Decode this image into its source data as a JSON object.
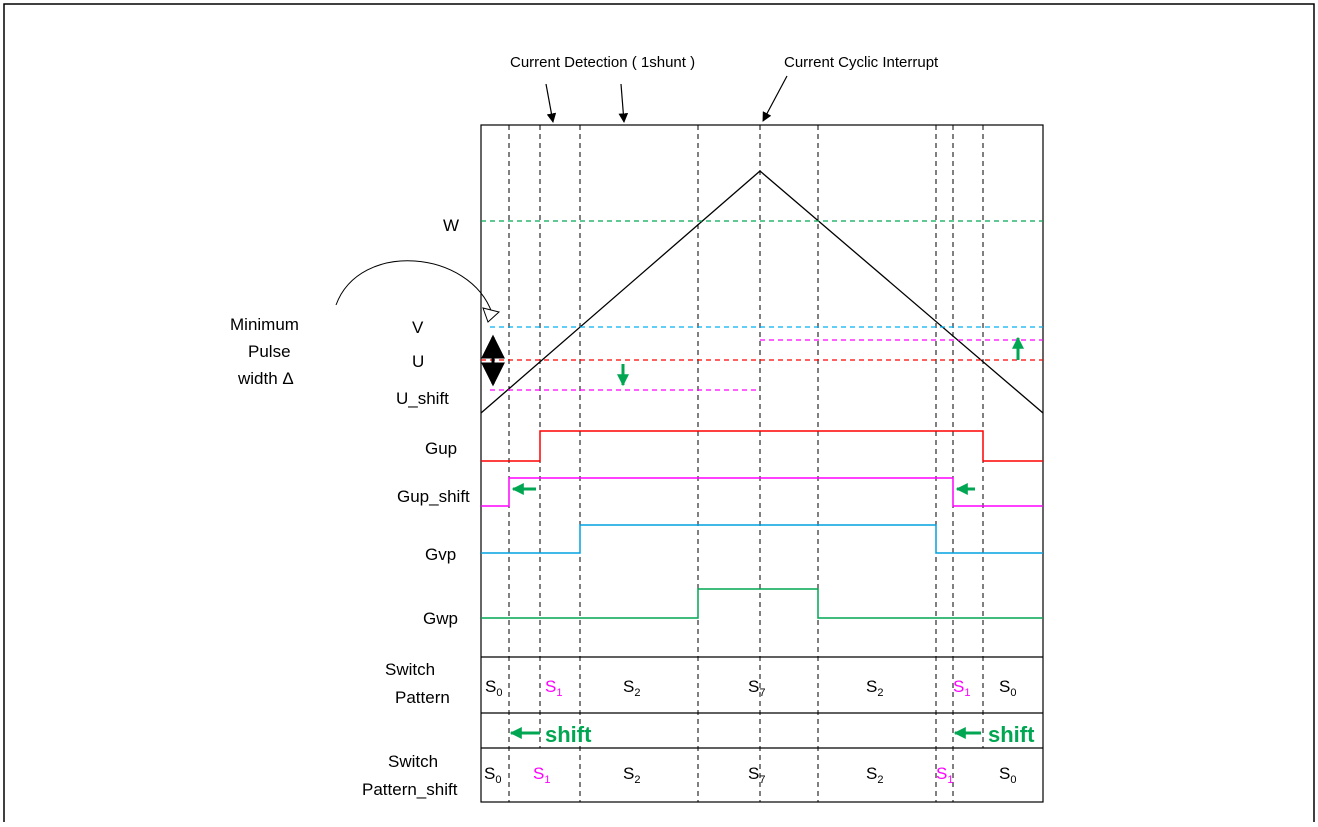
{
  "colors": {
    "W": "#00a651",
    "V": "#00b0f0",
    "U": "#ff0000",
    "U_shift": "#ff00ff",
    "Gup": "#ff0000",
    "Gup_shift": "#ff00ff",
    "Gvp": "#00a0e0",
    "Gwp": "#00a651",
    "shift_arrow": "#00a651"
  },
  "annotations": {
    "current_detection": "Current Detection ( 1shunt )",
    "current_cyclic_interrupt": "Current Cyclic Interrupt",
    "min_pulse_1": "Minimum",
    "min_pulse_2": "Pulse",
    "min_pulse_3": "width Δ"
  },
  "levels": {
    "W": "W",
    "V": "V",
    "U": "U",
    "U_shift": "U_shift"
  },
  "signals": {
    "Gup": "Gup",
    "Gup_shift": "Gup_shift",
    "Gvp": "Gvp",
    "Gwp": "Gwp"
  },
  "table": {
    "row1_label_1": "Switch",
    "row1_label_2": "Pattern",
    "row2_label_1": "Switch",
    "row2_label_2": "Pattern_shift",
    "shift_label": "shift",
    "row1": [
      {
        "base": "S",
        "sub": "0"
      },
      {
        "base": "S",
        "sub": "1"
      },
      {
        "base": "S",
        "sub": "2"
      },
      {
        "base": "S",
        "sub": "7"
      },
      {
        "base": "S",
        "sub": "2"
      },
      {
        "base": "S",
        "sub": "1"
      },
      {
        "base": "S",
        "sub": "0"
      }
    ],
    "row2": [
      {
        "base": "S",
        "sub": "0"
      },
      {
        "base": "S",
        "sub": "1"
      },
      {
        "base": "S",
        "sub": "2"
      },
      {
        "base": "S",
        "sub": "7"
      },
      {
        "base": "S",
        "sub": "2"
      },
      {
        "base": "S",
        "sub": "1"
      },
      {
        "base": "S",
        "sub": "0"
      }
    ]
  }
}
